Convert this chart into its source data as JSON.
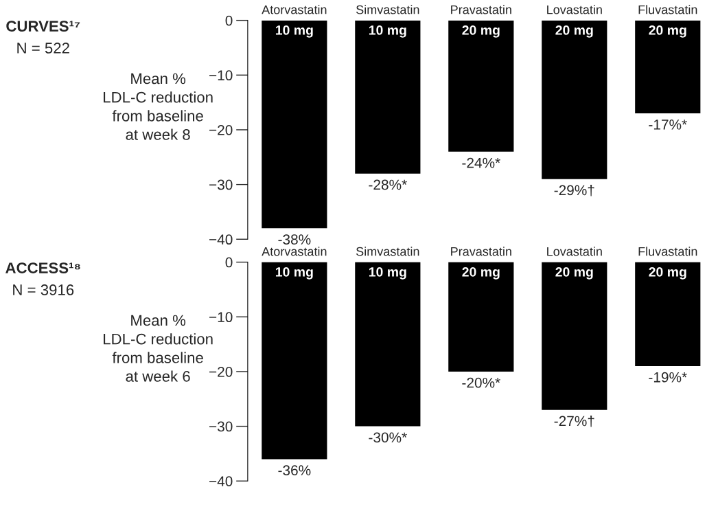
{
  "chart_data": [
    {
      "type": "bar",
      "ylabel": "Mean %\nLDL-C reduction\nfrom baseline\nat week 8",
      "categories": [
        "Atorvastatin",
        "Simvastatin",
        "Pravastatin",
        "Lovastatin",
        "Fluvastatin"
      ],
      "values": [
        -38,
        -28,
        -24,
        -29,
        -17
      ],
      "value_labels": [
        "-38%",
        "-28%*",
        "-24%*",
        "-29%†",
        "-17%*"
      ],
      "color": "#000000",
      "annotations": [
        "CURVES¹⁷",
        "N = 522",
        {
          "text": "10 mg",
          "x": "Atorvastatin",
          "y": 0
        },
        {
          "text": "10 mg",
          "x": "Simvastatin",
          "y": 0
        },
        {
          "text": "20 mg",
          "x": "Pravastatin",
          "y": 0
        },
        {
          "text": "20 mg",
          "x": "Lovastatin",
          "y": 0
        },
        {
          "text": "20 mg",
          "x": "Fluvastatin",
          "y": 0
        }
      ],
      "ylim": [
        -40,
        0
      ],
      "yticks": [
        0,
        {
          "value": -10,
          "label": "−10"
        },
        {
          "value": -20,
          "label": "−20"
        },
        {
          "value": -30,
          "label": "−30"
        },
        {
          "value": -40,
          "label": "−40"
        }
      ],
      "grid": false
    },
    {
      "type": "bar",
      "ylabel": "Mean %\nLDL-C reduction\nfrom baseline\nat week 6",
      "categories": [
        "Atorvastatin",
        "Simvastatin",
        "Pravastatin",
        "Lovastatin",
        "Fluvastatin"
      ],
      "values": [
        -36,
        -30,
        -20,
        -27,
        -19
      ],
      "value_labels": [
        "-36%",
        "-30%*",
        "-20%*",
        "-27%†",
        "-19%*"
      ],
      "color": "#000000",
      "annotations": [
        "ACCESS¹⁸",
        "N = 3916",
        {
          "text": "10 mg",
          "x": "Atorvastatin",
          "y": 0
        },
        {
          "text": "10 mg",
          "x": "Simvastatin",
          "y": 0
        },
        {
          "text": "20 mg",
          "x": "Pravastatin",
          "y": 0
        },
        {
          "text": "20 mg",
          "x": "Lovastatin",
          "y": 0
        },
        {
          "text": "20 mg",
          "x": "Fluvastatin",
          "y": 0
        }
      ],
      "ylim": [
        -40,
        0
      ],
      "yticks": [
        0,
        {
          "value": -10,
          "label": "−10"
        },
        {
          "value": -20,
          "label": "−20"
        },
        {
          "value": -30,
          "label": "−30"
        },
        {
          "value": -40,
          "label": "−40"
        }
      ],
      "grid": false
    }
  ]
}
